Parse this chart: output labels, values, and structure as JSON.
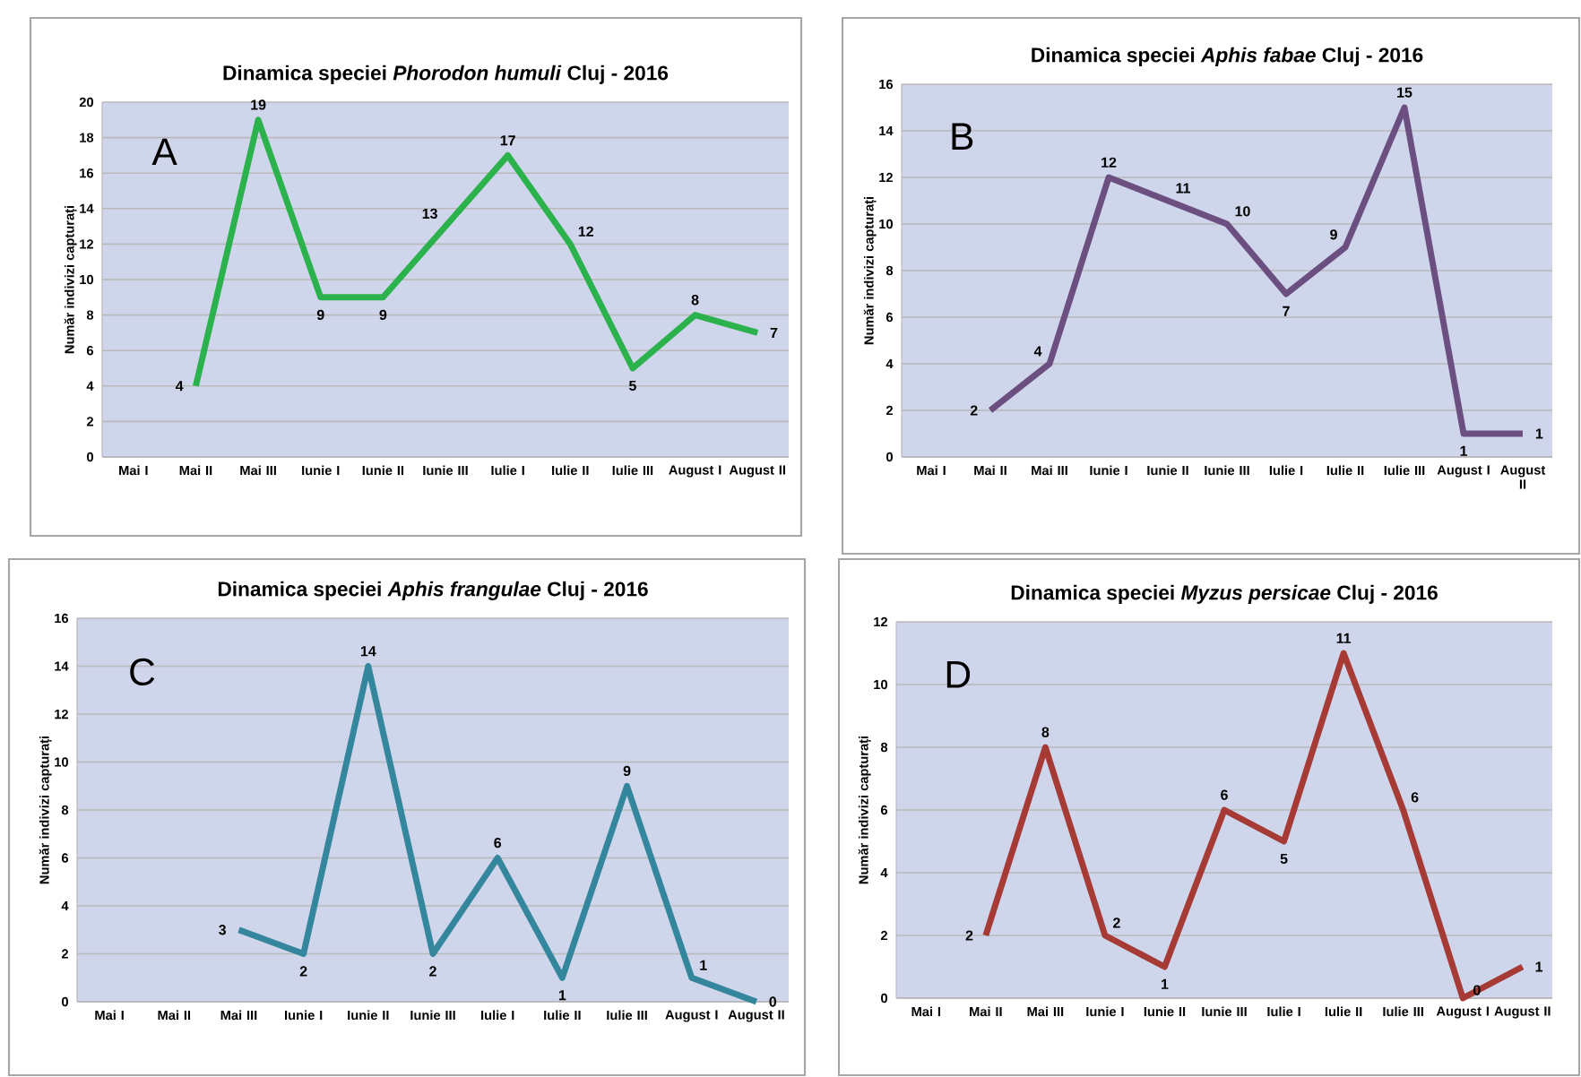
{
  "chart_data": [
    {
      "type": "line",
      "title": "Dinamica speciei *Phorodon humuli* Cluj - 2016",
      "ylabel": "Număr indivizi capturați",
      "annotations": [
        "A"
      ],
      "categories": [
        "Mai I",
        "Mai II",
        "Mai III",
        "Iunie I",
        "Iunie II",
        "Iunie III",
        "Iulie I",
        "Iulie II",
        "Iulie III",
        "August I",
        "August II"
      ],
      "series": [
        {
          "color": "#2bb24c",
          "values": [
            null,
            4,
            19,
            9,
            9,
            13,
            17,
            12,
            5,
            8,
            7
          ]
        }
      ],
      "ylim": [
        0,
        20
      ],
      "yticks": [
        0,
        2,
        4,
        6,
        8,
        10,
        12,
        14,
        16,
        18,
        20
      ],
      "grid": "y",
      "data_labels": true
    },
    {
      "type": "line",
      "title": "Dinamica speciei *Aphis fabae* Cluj - 2016",
      "ylabel": "Număr indivizi capturați",
      "annotations": [
        "B"
      ],
      "categories": [
        "Mai I",
        "Mai II",
        "Mai III",
        "Iunie I",
        "Iunie II",
        "Iunie III",
        "Iulie I",
        "Iulie II",
        "Iulie III",
        "August I",
        "August II"
      ],
      "series": [
        {
          "color": "#6b4f80",
          "values": [
            null,
            2,
            4,
            12,
            11,
            10,
            7,
            9,
            15,
            1,
            1
          ]
        }
      ],
      "ylim": [
        0,
        16
      ],
      "yticks": [
        0,
        2,
        4,
        6,
        8,
        10,
        12,
        14,
        16
      ],
      "grid": "y",
      "data_labels": true
    },
    {
      "type": "line",
      "title": "Dinamica speciei *Aphis frangulae* Cluj - 2016",
      "ylabel": "Număr indivizi capturați",
      "annotations": [
        "C"
      ],
      "categories": [
        "Mai I",
        "Mai II",
        "Mai III",
        "Iunie I",
        "Iunie II",
        "Iunie III",
        "Iulie I",
        "Iulie II",
        "Iulie III",
        "August I",
        "August II"
      ],
      "series": [
        {
          "color": "#33869c",
          "values": [
            null,
            null,
            3,
            2,
            14,
            2,
            6,
            1,
            9,
            1,
            0
          ]
        }
      ],
      "ylim": [
        0,
        16
      ],
      "yticks": [
        0,
        2,
        4,
        6,
        8,
        10,
        12,
        14,
        16
      ],
      "grid": "y",
      "data_labels": true
    },
    {
      "type": "line",
      "title": "Dinamica speciei *Myzus persicae* Cluj - 2016",
      "ylabel": "Număr indivizi capturați",
      "annotations": [
        "D"
      ],
      "categories": [
        "Mai I",
        "Mai II",
        "Mai III",
        "Iunie I",
        "Iunie II",
        "Iunie III",
        "Iulie I",
        "Iulie II",
        "Iulie III",
        "August I",
        "August II"
      ],
      "series": [
        {
          "color": "#a63a35",
          "values": [
            null,
            2,
            8,
            2,
            1,
            6,
            5,
            11,
            6,
            0,
            1
          ]
        }
      ],
      "ylim": [
        0,
        12
      ],
      "yticks": [
        0,
        2,
        4,
        6,
        8,
        10,
        12
      ],
      "grid": "y",
      "data_labels": true
    }
  ]
}
